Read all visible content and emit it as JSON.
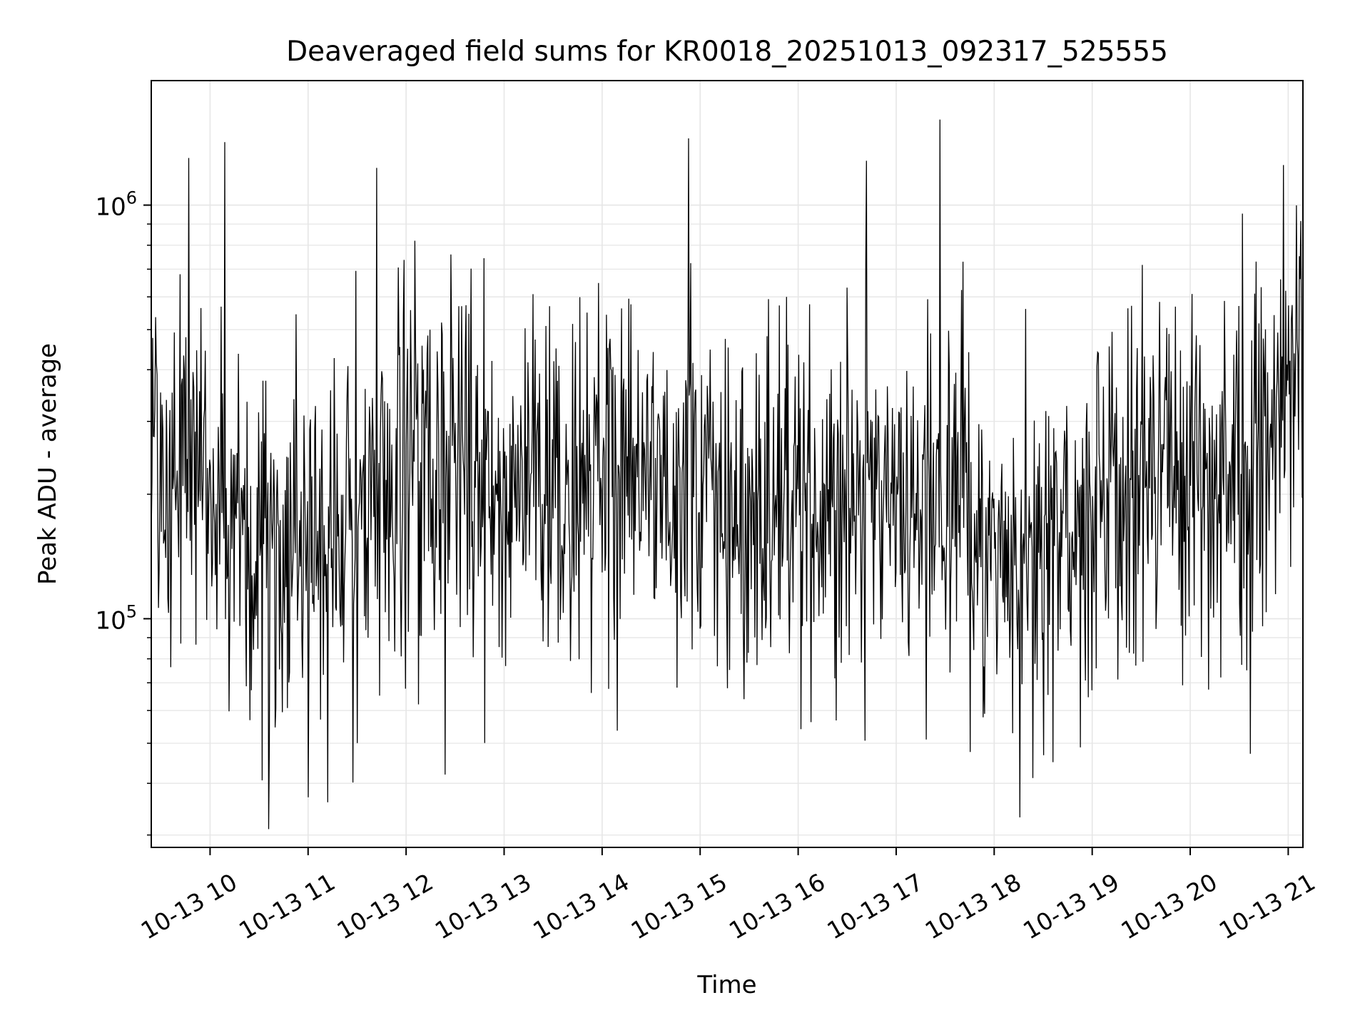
{
  "chart_data": {
    "type": "line",
    "title": "Deaveraged field sums for KR0018_20251013_092317_525555",
    "xlabel": "Time",
    "ylabel": "Peak ADU - average",
    "yscale": "log",
    "ylim": [
      28000,
      2000000
    ],
    "xlim_hours": [
      9.4,
      21.15
    ],
    "grid": true,
    "line_color": "#000000",
    "grid_color": "#e6e6e6",
    "x_ticks": [
      {
        "hour": 10,
        "label": "10-13 10"
      },
      {
        "hour": 11,
        "label": "10-13 11"
      },
      {
        "hour": 12,
        "label": "10-13 12"
      },
      {
        "hour": 13,
        "label": "10-13 13"
      },
      {
        "hour": 14,
        "label": "10-13 14"
      },
      {
        "hour": 15,
        "label": "10-13 15"
      },
      {
        "hour": 16,
        "label": "10-13 16"
      },
      {
        "hour": 17,
        "label": "10-13 17"
      },
      {
        "hour": 18,
        "label": "10-13 18"
      },
      {
        "hour": 19,
        "label": "10-13 19"
      },
      {
        "hour": 20,
        "label": "10-13 20"
      },
      {
        "hour": 21,
        "label": "10-13 21"
      }
    ],
    "y_major_ticks": [
      {
        "value": 100000,
        "base": "10",
        "exp": "5"
      },
      {
        "value": 1000000,
        "base": "10",
        "exp": "6"
      }
    ],
    "y_minor_ticks": [
      30000,
      40000,
      50000,
      60000,
      70000,
      80000,
      90000,
      200000,
      300000,
      400000,
      500000,
      600000,
      700000,
      800000,
      900000
    ],
    "series": [
      {
        "name": "Deaveraged field sum",
        "n_points": 1600,
        "baseline_envelope": [
          {
            "hour": 9.4,
            "value": 250000
          },
          {
            "hour": 10.0,
            "value": 210000
          },
          {
            "hour": 10.8,
            "value": 150000
          },
          {
            "hour": 11.2,
            "value": 140000
          },
          {
            "hour": 12.0,
            "value": 260000
          },
          {
            "hour": 12.7,
            "value": 230000
          },
          {
            "hour": 13.5,
            "value": 200000
          },
          {
            "hour": 14.3,
            "value": 230000
          },
          {
            "hour": 15.0,
            "value": 210000
          },
          {
            "hour": 16.0,
            "value": 170000
          },
          {
            "hour": 16.8,
            "value": 190000
          },
          {
            "hour": 17.5,
            "value": 200000
          },
          {
            "hour": 18.2,
            "value": 150000
          },
          {
            "hour": 19.0,
            "value": 180000
          },
          {
            "hour": 19.7,
            "value": 230000
          },
          {
            "hour": 20.5,
            "value": 200000
          },
          {
            "hour": 21.15,
            "value": 420000
          }
        ],
        "extrema_samples": [
          {
            "hour": 9.78,
            "value": 1300000
          },
          {
            "hour": 10.15,
            "value": 1420000
          },
          {
            "hour": 10.6,
            "value": 31000
          },
          {
            "hour": 11.0,
            "value": 37000
          },
          {
            "hour": 11.2,
            "value": 36000
          },
          {
            "hour": 11.7,
            "value": 1230000
          },
          {
            "hour": 12.4,
            "value": 42000
          },
          {
            "hour": 14.88,
            "value": 1450000
          },
          {
            "hour": 16.7,
            "value": 1280000
          },
          {
            "hour": 17.45,
            "value": 1610000
          },
          {
            "hour": 18.6,
            "value": 45000
          },
          {
            "hour": 20.95,
            "value": 1250000
          }
        ]
      }
    ]
  }
}
